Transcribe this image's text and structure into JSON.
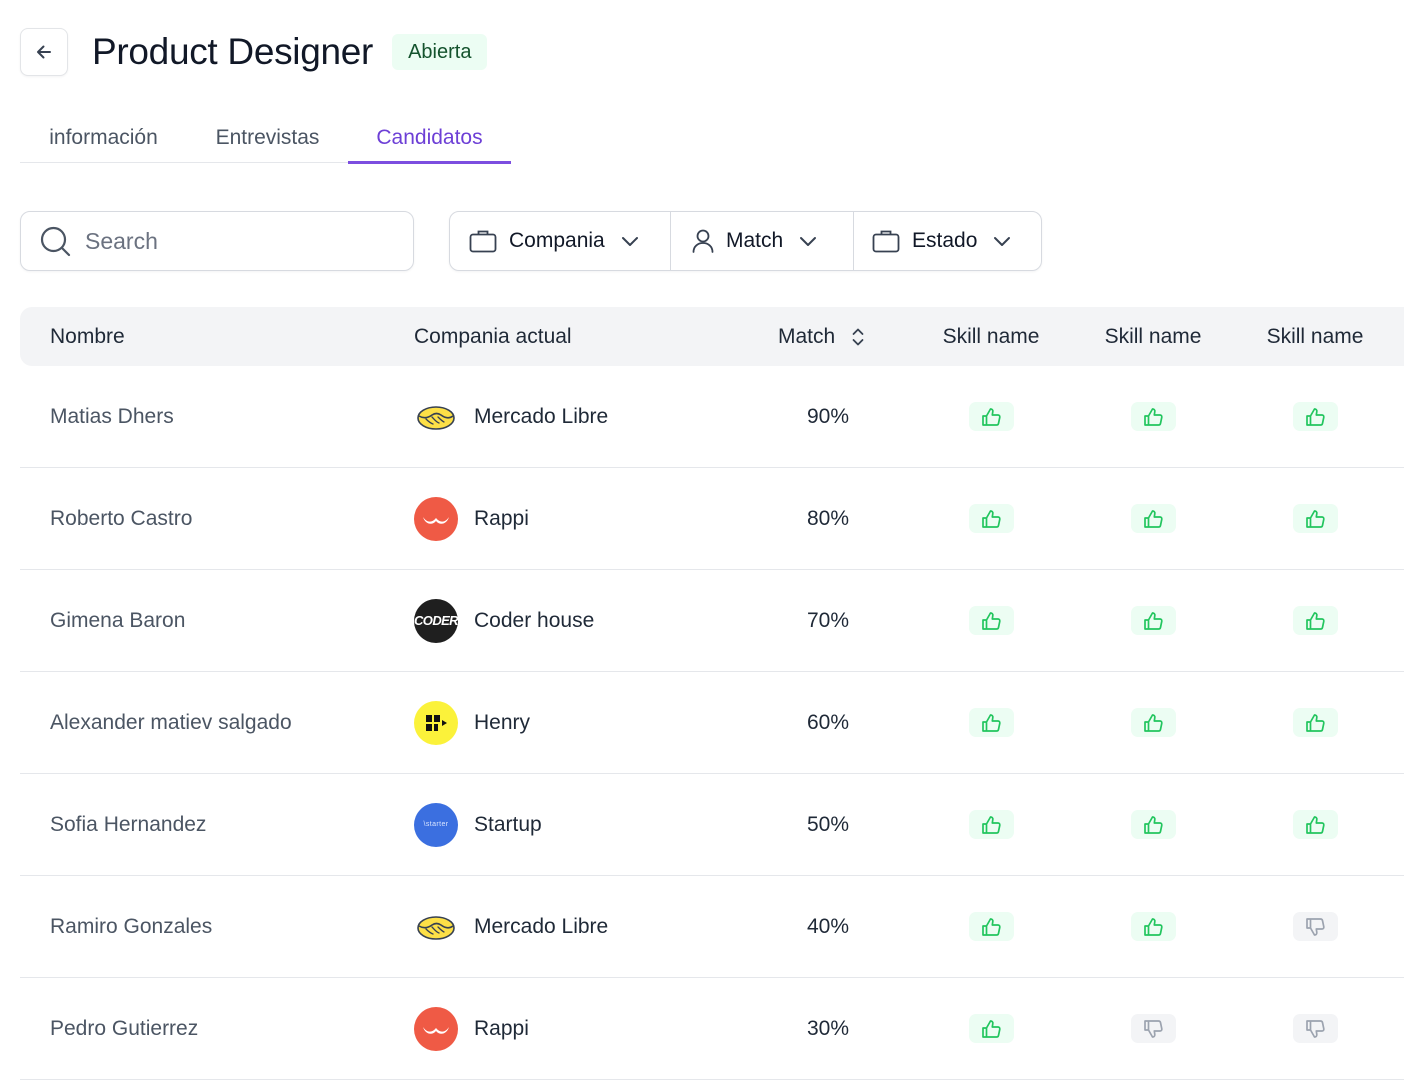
{
  "header": {
    "title": "Product Designer",
    "status": "Abierta"
  },
  "tabs": [
    {
      "label": "información",
      "active": false
    },
    {
      "label": "Entrevistas",
      "active": false
    },
    {
      "label": "Candidatos",
      "active": true
    }
  ],
  "search": {
    "placeholder": "Search",
    "value": ""
  },
  "filters": [
    {
      "label": "Compania",
      "icon": "briefcase-icon"
    },
    {
      "label": "Match",
      "icon": "user-icon"
    },
    {
      "label": "Estado",
      "icon": "briefcase-icon"
    }
  ],
  "table": {
    "columns": [
      "Nombre",
      "Compania actual",
      "Match",
      "Skill name",
      "Skill name",
      "Skill name"
    ],
    "rows": [
      {
        "name": "Matias Dhers",
        "company": "Mercado Libre",
        "logo": "mercadolibre",
        "match": "90%",
        "skills": [
          "up",
          "up",
          "up"
        ]
      },
      {
        "name": "Roberto Castro",
        "company": "Rappi",
        "logo": "rappi",
        "match": "80%",
        "skills": [
          "up",
          "up",
          "up"
        ]
      },
      {
        "name": "Gimena Baron",
        "company": "Coder house",
        "logo": "coder",
        "match": "70%",
        "skills": [
          "up",
          "up",
          "up"
        ]
      },
      {
        "name": "Alexander matiev salgado",
        "company": "Henry",
        "logo": "henry",
        "match": "60%",
        "skills": [
          "up",
          "up",
          "up"
        ]
      },
      {
        "name": "Sofia Hernandez",
        "company": "Startup",
        "logo": "startup",
        "match": "50%",
        "skills": [
          "up",
          "up",
          "up"
        ]
      },
      {
        "name": "Ramiro Gonzales",
        "company": "Mercado Libre",
        "logo": "mercadolibre",
        "match": "40%",
        "skills": [
          "up",
          "up",
          "down"
        ]
      },
      {
        "name": "Pedro Gutierrez",
        "company": "Rappi",
        "logo": "rappi",
        "match": "30%",
        "skills": [
          "up",
          "down",
          "down"
        ]
      }
    ]
  },
  "logo_text": {
    "coder": "CODER",
    "startup": "\\starter"
  },
  "colors": {
    "accent": "#7c4ee0",
    "status_bg": "#ecfdf3",
    "status_text": "#14532d",
    "thumb_up": "#22c55e",
    "thumb_down": "#9ca3af",
    "rappi": "#ef5a45",
    "henry": "#fbf23a",
    "startup": "#3b6fe0",
    "coder": "#1f1f1f"
  }
}
